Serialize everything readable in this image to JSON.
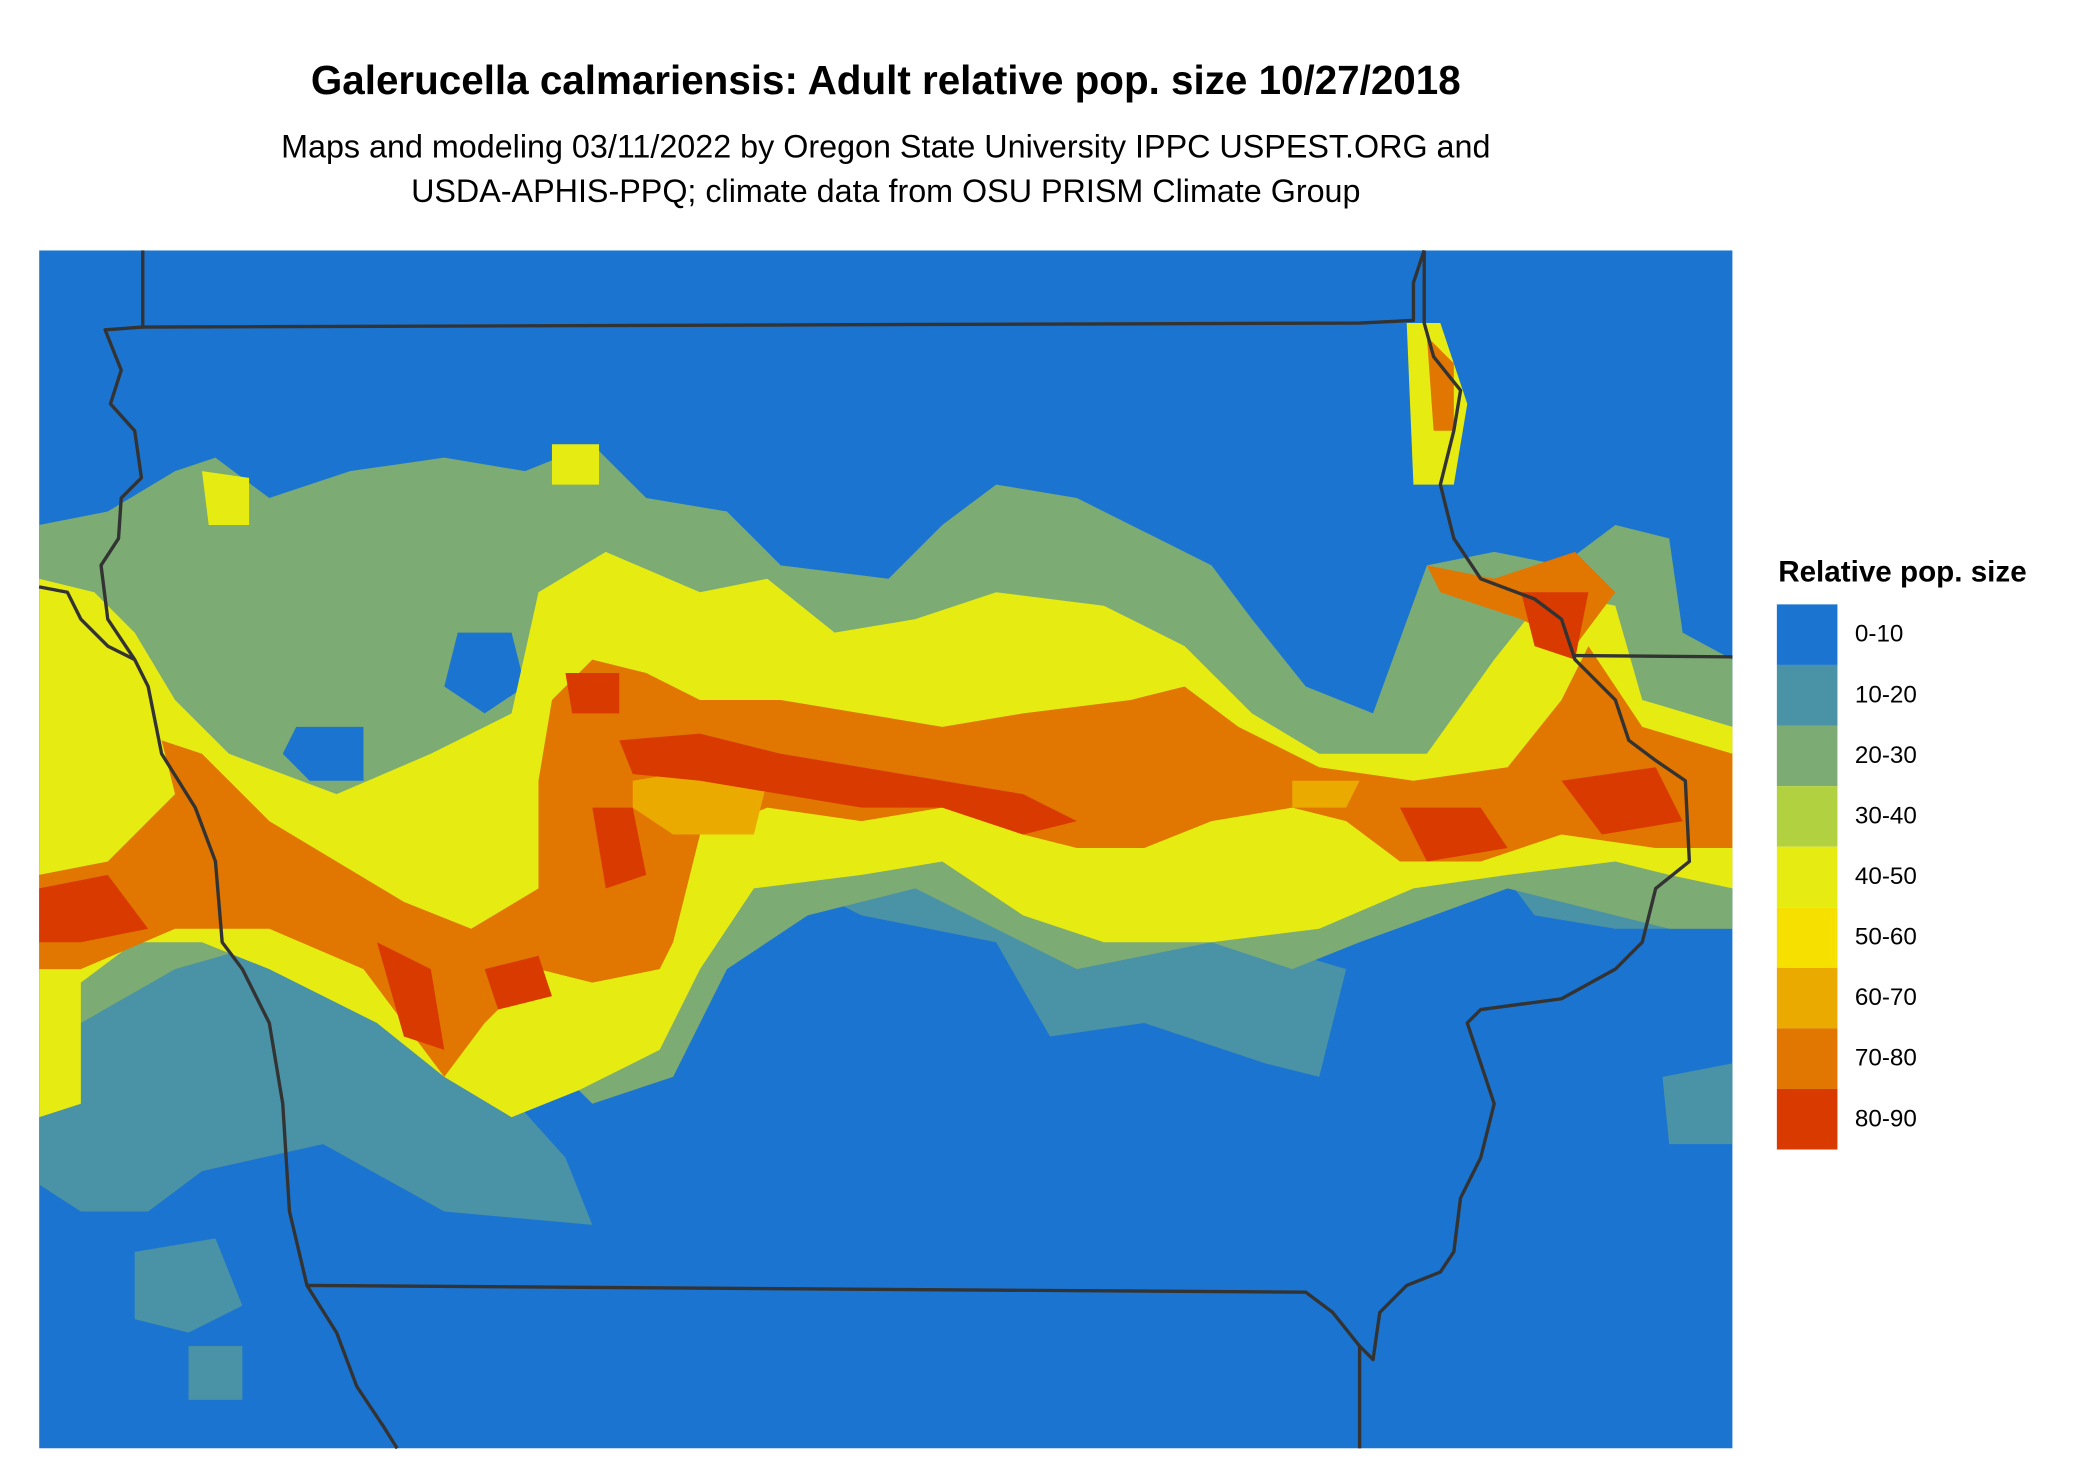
{
  "title": "Galerucella calmariensis: Adult relative pop. size 10/27/2018",
  "subtitle": [
    "Maps and modeling 03/11/2022 by Oregon State University IPPC USPEST.ORG and",
    "USDA-APHIS-PPQ; climate data from OSU PRISM Climate Group"
  ],
  "legend": {
    "title": "Relative pop. size",
    "items": [
      {
        "label": "0-10",
        "color": "#1b75d0"
      },
      {
        "label": "10-20",
        "color": "#4a92a6"
      },
      {
        "label": "20-30",
        "color": "#7dab74"
      },
      {
        "label": "30-40",
        "color": "#b2d140"
      },
      {
        "label": "40-50",
        "color": "#e6ec12"
      },
      {
        "label": "50-60",
        "color": "#f6e000"
      },
      {
        "label": "60-70",
        "color": "#ebaa00"
      },
      {
        "label": "70-80",
        "color": "#e17600"
      },
      {
        "label": "80-90",
        "color": "#d93a00"
      }
    ]
  }
}
